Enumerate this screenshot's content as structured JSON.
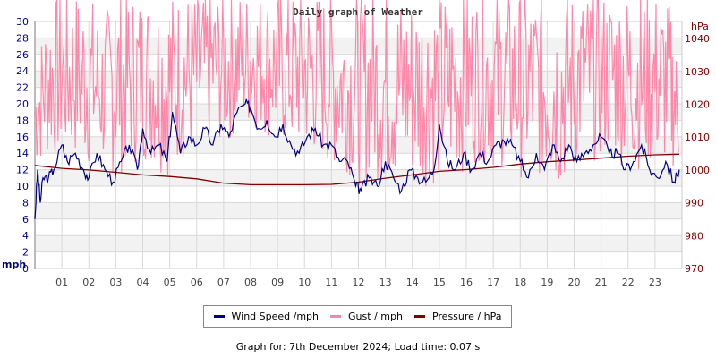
{
  "chart_data": {
    "type": "line",
    "title": "Daily graph of Weather",
    "xlabel": "",
    "ylabel": "mph",
    "ylabel_right": "hPa",
    "x_ticks": [
      "01",
      "02",
      "03",
      "04",
      "05",
      "06",
      "07",
      "08",
      "09",
      "10",
      "11",
      "12",
      "13",
      "14",
      "15",
      "16",
      "17",
      "18",
      "19",
      "20",
      "21",
      "22",
      "23"
    ],
    "y_ticks_left": [
      0,
      2,
      4,
      6,
      8,
      10,
      12,
      14,
      16,
      18,
      20,
      22,
      24,
      26,
      28,
      30
    ],
    "y_ticks_right": [
      970,
      980,
      990,
      1000,
      1010,
      1020,
      1030,
      1040
    ],
    "ylim": [
      0,
      30
    ],
    "ylim_right": [
      970,
      1045
    ],
    "xlim_hours": [
      0,
      24
    ],
    "grid": true,
    "legend_position": "bottom",
    "series": [
      {
        "name": "Wind Speed /mph",
        "axis": "left",
        "color": "#000080",
        "x": [
          0,
          0.1,
          0.2,
          0.3,
          0.5,
          0.7,
          1.0,
          1.2,
          1.5,
          1.8,
          2.0,
          2.3,
          2.6,
          2.9,
          3.2,
          3.5,
          3.8,
          4.0,
          4.3,
          4.6,
          4.9,
          5.1,
          5.4,
          5.7,
          6.0,
          6.3,
          6.6,
          6.9,
          7.2,
          7.5,
          7.8,
          8.0,
          8.3,
          8.6,
          8.9,
          9.2,
          9.5,
          9.8,
          10.1,
          10.4,
          10.7,
          11.0,
          11.3,
          11.6,
          11.9,
          12.1,
          12.4,
          12.7,
          13.0,
          13.3,
          13.6,
          13.9,
          14.2,
          14.5,
          14.8,
          15.0,
          15.3,
          15.6,
          15.9,
          16.2,
          16.5,
          16.8,
          17.1,
          17.4,
          17.7,
          18.0,
          18.3,
          18.6,
          18.9,
          19.2,
          19.5,
          19.8,
          20.1,
          20.4,
          20.7,
          21.0,
          21.3,
          21.6,
          21.9,
          22.2,
          22.5,
          22.8,
          23.1,
          23.4,
          23.7,
          23.9
        ],
        "values": [
          6,
          12,
          8,
          11,
          11,
          12,
          15,
          13,
          14,
          12,
          11,
          14,
          12,
          10.5,
          13,
          15,
          12,
          17,
          14,
          15,
          13,
          19,
          14,
          16,
          15,
          17,
          15,
          17.5,
          16,
          19,
          20,
          19.5,
          17,
          18,
          16,
          17.5,
          15,
          14,
          16,
          17,
          15,
          15,
          13,
          13,
          10,
          9.5,
          11,
          10,
          13,
          11,
          9.5,
          12,
          11,
          10.5,
          12,
          17.5,
          13,
          12,
          14,
          12,
          14,
          13,
          15,
          15.5,
          15,
          13,
          11,
          14,
          12,
          15,
          13,
          15,
          13,
          14,
          15,
          16,
          14,
          14,
          12,
          13,
          15,
          12,
          11,
          13,
          10.5,
          12
        ]
      },
      {
        "name": "Gust / mph",
        "axis": "left",
        "color": "#ff88aa",
        "x": [
          0,
          0.5,
          1,
          1.5,
          2,
          2.5,
          3,
          3.5,
          4,
          4.5,
          5,
          5.5,
          6,
          6.5,
          7,
          7.5,
          8,
          8.5,
          9,
          9.5,
          10,
          10.5,
          11,
          11.5,
          12,
          12.5,
          13,
          13.5,
          14,
          14.5,
          15,
          15.5,
          16,
          16.5,
          17,
          17.5,
          18,
          18.5,
          19,
          19.5,
          20,
          20.5,
          21,
          21.5,
          22,
          22.5,
          23,
          23.5,
          23.9
        ],
        "min_values": [
          12,
          13,
          13,
          13,
          12,
          12,
          11,
          12,
          13,
          12,
          11,
          13,
          13,
          15,
          15,
          16,
          17,
          16,
          15,
          14,
          14,
          13,
          12,
          12,
          10,
          11,
          10,
          10,
          10,
          10,
          10,
          11,
          12,
          13,
          12,
          12,
          11,
          11,
          10,
          9,
          12,
          13,
          13,
          13,
          12,
          12,
          12,
          12,
          12
        ],
        "max_values": [
          21,
          29,
          30,
          30,
          30,
          27,
          30,
          30,
          30,
          30,
          30,
          30,
          30,
          30,
          30,
          30,
          30,
          30,
          30,
          30,
          30,
          30,
          30,
          28,
          30,
          30,
          30,
          30,
          30,
          30,
          30,
          30,
          30,
          30,
          30,
          30,
          30,
          30,
          30,
          30,
          30,
          30,
          30,
          30,
          30,
          30,
          30,
          29,
          21
        ]
      },
      {
        "name": "Pressure / hPa",
        "axis": "right",
        "color": "#800000",
        "x": [
          0,
          1,
          2,
          3,
          4,
          5,
          6,
          7,
          8,
          9,
          10,
          11,
          12,
          13,
          14,
          15,
          16,
          17,
          18,
          19,
          20,
          21,
          22,
          23,
          23.9
        ],
        "values": [
          1001.4,
          1000.5,
          1000,
          999.3,
          998.5,
          998,
          997.3,
          996,
          995.5,
          995.5,
          995.5,
          995.6,
          996.3,
          997.5,
          998.5,
          999.6,
          1000.1,
          1000.8,
          1001.8,
          1002.5,
          1003,
          1003.6,
          1004.2,
          1004.6,
          1004.8
        ]
      }
    ]
  },
  "header": {
    "title": "Daily graph of Weather"
  },
  "axes": {
    "left_unit": "mph",
    "right_unit": "hPa",
    "left_ticks": [
      "0",
      "2",
      "4",
      "6",
      "8",
      "10",
      "12",
      "14",
      "16",
      "18",
      "20",
      "22",
      "24",
      "26",
      "28",
      "30"
    ],
    "right_ticks": [
      "970",
      "980",
      "990",
      "1000",
      "1010",
      "1020",
      "1030",
      "1040"
    ],
    "x_ticks": [
      "01",
      "02",
      "03",
      "04",
      "05",
      "06",
      "07",
      "08",
      "09",
      "10",
      "11",
      "12",
      "13",
      "14",
      "15",
      "16",
      "17",
      "18",
      "19",
      "20",
      "21",
      "22",
      "23"
    ]
  },
  "legend": {
    "items": [
      {
        "label": "Wind Speed /mph",
        "color": "#000080"
      },
      {
        "label": "Gust / mph",
        "color": "#ff88aa"
      },
      {
        "label": "Pressure / hPa",
        "color": "#800000"
      }
    ]
  },
  "footer": {
    "text": "Graph for: 7th December 2024; Load time: 0.07 s"
  },
  "colors": {
    "grid_band": "#f2f2f2",
    "grid_line": "#d8d8d8",
    "left_axis_text": "#000080",
    "right_axis_text": "#800000"
  }
}
